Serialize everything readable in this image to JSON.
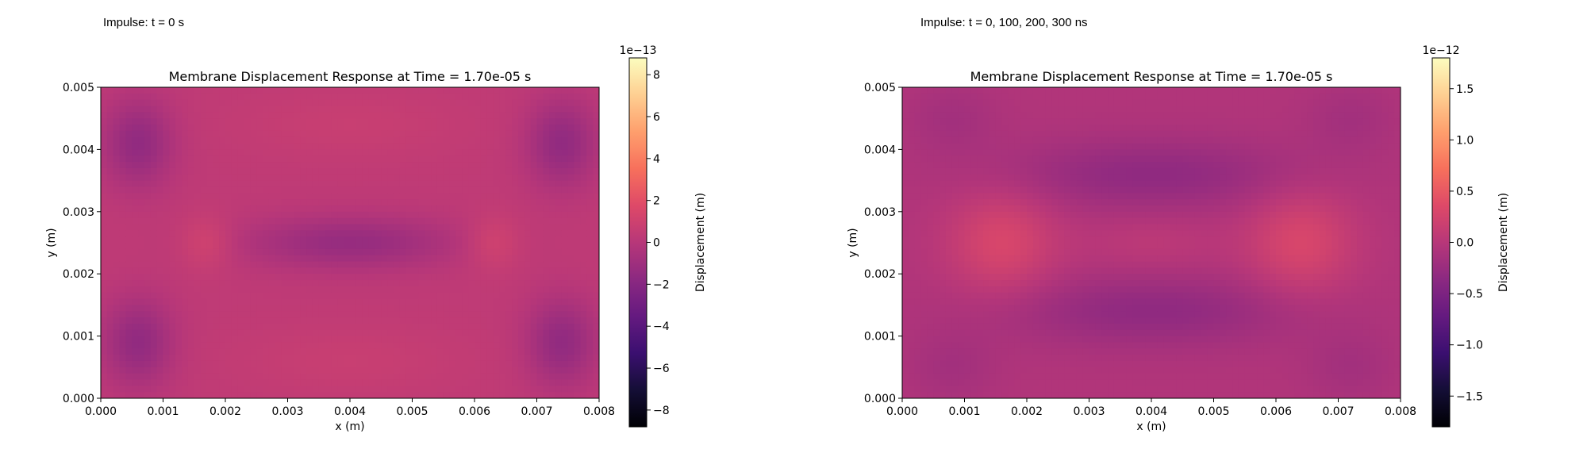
{
  "panels": [
    {
      "caption": "Impulse: t = 0 s"
    },
    {
      "caption": "Impulse: t = 0, 100, 200, 300 ns"
    }
  ],
  "colormap": "magma",
  "chart_data": [
    {
      "type": "heatmap",
      "title": "Membrane Displacement Response at Time = 1.70e-05 s",
      "xlabel": "x (m)",
      "ylabel": "y (m)",
      "xlim": [
        0,
        0.008
      ],
      "ylim": [
        0,
        0.005
      ],
      "xticks": [
        "0.000",
        "0.001",
        "0.002",
        "0.003",
        "0.004",
        "0.005",
        "0.006",
        "0.007",
        "0.008"
      ],
      "yticks": [
        "0.000",
        "0.001",
        "0.002",
        "0.003",
        "0.004",
        "0.005"
      ],
      "colorbar": {
        "label": "Displacement (m)",
        "offset": "1e−13",
        "range": [
          -8.8,
          8.8
        ],
        "ticks": [
          -8,
          -6,
          -4,
          -2,
          0,
          2,
          4,
          6,
          8
        ],
        "tick_labels": [
          "−8",
          "−6",
          "−4",
          "−2",
          "0",
          "2",
          "4",
          "6",
          "8"
        ]
      },
      "field": {
        "base": 0.35,
        "features": [
          {
            "x": 0.0006,
            "y": 0.0041,
            "sx": 0.0004,
            "sy": 0.0005,
            "amp": -1.9
          },
          {
            "x": 0.0074,
            "y": 0.0041,
            "sx": 0.0004,
            "sy": 0.0005,
            "amp": -1.9
          },
          {
            "x": 0.0006,
            "y": 0.0009,
            "sx": 0.0004,
            "sy": 0.0005,
            "amp": -1.9
          },
          {
            "x": 0.0074,
            "y": 0.0009,
            "sx": 0.0004,
            "sy": 0.0005,
            "amp": -1.9
          },
          {
            "x": 0.004,
            "y": 0.0025,
            "sx": 0.0012,
            "sy": 0.0003,
            "amp": -1.7
          },
          {
            "x": 0.0017,
            "y": 0.0025,
            "sx": 0.0003,
            "sy": 0.0003,
            "amp": 0.9
          },
          {
            "x": 0.0063,
            "y": 0.0025,
            "sx": 0.0003,
            "sy": 0.0003,
            "amp": 0.9
          },
          {
            "x": 0.004,
            "y": 0.0044,
            "sx": 0.0013,
            "sy": 0.0004,
            "amp": 0.4
          },
          {
            "x": 0.004,
            "y": 0.0006,
            "sx": 0.0013,
            "sy": 0.0004,
            "amp": 0.4
          }
        ]
      }
    },
    {
      "type": "heatmap",
      "title": "Membrane Displacement Response at Time = 1.70e-05 s",
      "xlabel": "x (m)",
      "ylabel": "y (m)",
      "xlim": [
        0,
        0.008
      ],
      "ylim": [
        0,
        0.005
      ],
      "xticks": [
        "0.000",
        "0.001",
        "0.002",
        "0.003",
        "0.004",
        "0.005",
        "0.006",
        "0.007",
        "0.008"
      ],
      "yticks": [
        "0.000",
        "0.001",
        "0.002",
        "0.003",
        "0.004",
        "0.005"
      ],
      "colorbar": {
        "label": "Displacement (m)",
        "offset": "1e−12",
        "range": [
          -1.8,
          1.8
        ],
        "ticks": [
          -1.5,
          -1.0,
          -0.5,
          0.0,
          0.5,
          1.0,
          1.5
        ],
        "tick_labels": [
          "−1.5",
          "−1.0",
          "−0.5",
          "0.0",
          "0.5",
          "1.0",
          "1.5"
        ]
      },
      "field": {
        "base": -0.05,
        "features": [
          {
            "x": 0.0016,
            "y": 0.0025,
            "sx": 0.0006,
            "sy": 0.0006,
            "amp": 0.35
          },
          {
            "x": 0.0064,
            "y": 0.0025,
            "sx": 0.0006,
            "sy": 0.0006,
            "amp": 0.35
          },
          {
            "x": 0.004,
            "y": 0.0025,
            "sx": 0.0008,
            "sy": 0.0003,
            "amp": 0.1
          },
          {
            "x": 0.004,
            "y": 0.0036,
            "sx": 0.0017,
            "sy": 0.0004,
            "amp": -0.28
          },
          {
            "x": 0.004,
            "y": 0.0014,
            "sx": 0.0017,
            "sy": 0.0004,
            "amp": -0.28
          },
          {
            "x": 0.0008,
            "y": 0.0045,
            "sx": 0.0005,
            "sy": 0.0004,
            "amp": -0.12
          },
          {
            "x": 0.0072,
            "y": 0.0045,
            "sx": 0.0005,
            "sy": 0.0004,
            "amp": -0.12
          },
          {
            "x": 0.0008,
            "y": 0.0005,
            "sx": 0.0005,
            "sy": 0.0004,
            "amp": -0.12
          },
          {
            "x": 0.0072,
            "y": 0.0005,
            "sx": 0.0005,
            "sy": 0.0004,
            "amp": -0.12
          }
        ]
      }
    }
  ]
}
